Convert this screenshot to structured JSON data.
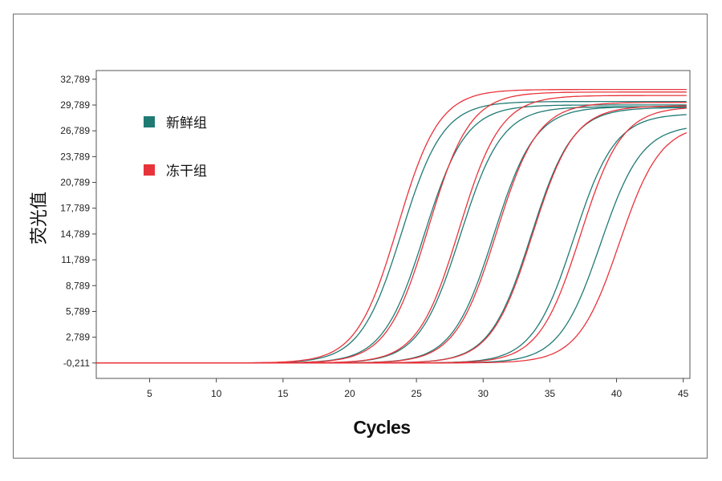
{
  "chart_data": {
    "type": "line",
    "xlabel": "Cycles",
    "ylabel": "荧光值",
    "xlim": [
      1,
      45.5
    ],
    "ylim": [
      -2000,
      33800
    ],
    "xticks": [
      5,
      10,
      15,
      20,
      25,
      30,
      35,
      40,
      45
    ],
    "yticks": [
      -211,
      2789,
      5789,
      8789,
      11789,
      14789,
      17789,
      20789,
      23789,
      26789,
      29789,
      32789
    ],
    "ytick_labels": [
      "-0,211",
      "2,789",
      "5,789",
      "8,789",
      "11,789",
      "14,789",
      "17,789",
      "20,789",
      "23,789",
      "26,789",
      "29,789",
      "32,789"
    ],
    "legend_position": "top-left",
    "series": [
      {
        "name": "新鲜组",
        "color": "#1f7a74",
        "curves": [
          {
            "ct": 23.9,
            "max": 30200
          },
          {
            "ct": 25.6,
            "max": 29800
          },
          {
            "ct": 28.3,
            "max": 29600
          },
          {
            "ct": 30.8,
            "max": 29600
          },
          {
            "ct": 33.6,
            "max": 29500
          },
          {
            "ct": 36.8,
            "max": 28800
          },
          {
            "ct": 38.8,
            "max": 27500
          }
        ]
      },
      {
        "name": "冻干组",
        "color": "#e8333b",
        "curves": [
          {
            "ct": 23.6,
            "max": 31600
          },
          {
            "ct": 25.9,
            "max": 31300
          },
          {
            "ct": 28.2,
            "max": 30900
          },
          {
            "ct": 31.0,
            "max": 30100
          },
          {
            "ct": 33.7,
            "max": 29700
          },
          {
            "ct": 37.3,
            "max": 29600
          },
          {
            "ct": 40.2,
            "max": 27600
          }
        ]
      }
    ]
  }
}
